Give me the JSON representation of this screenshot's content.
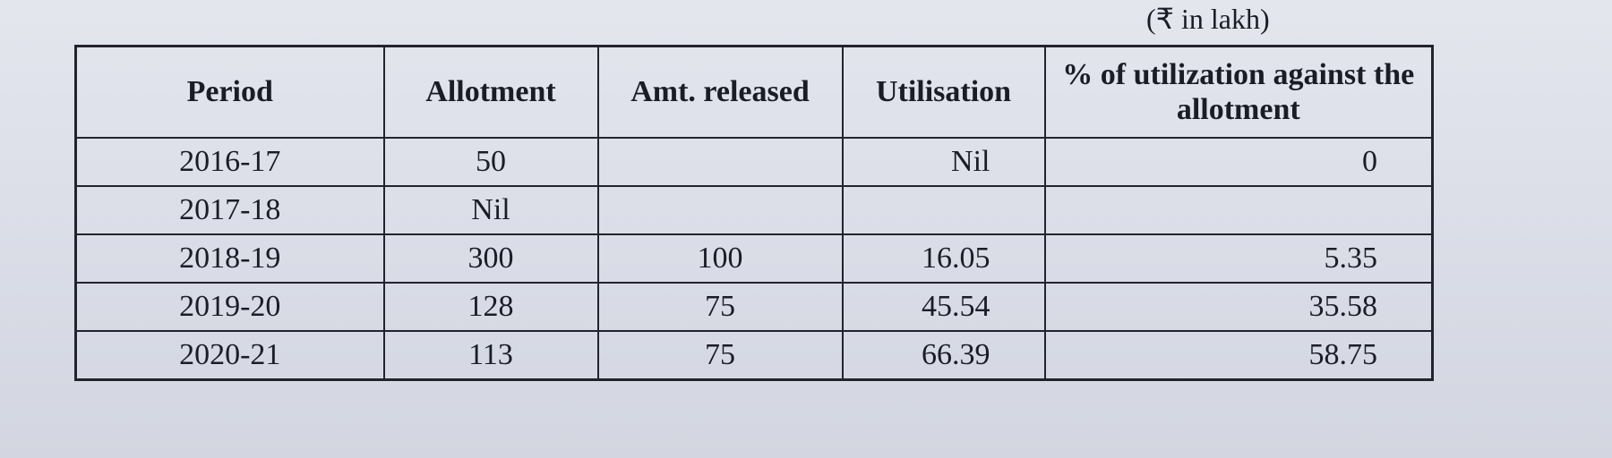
{
  "unit_note": "(₹ in lakh)",
  "table": {
    "header": [
      "Period",
      "Allotment",
      "Amt. released",
      "Utilisation",
      "% of utilization against the allotment"
    ],
    "rows": [
      [
        "2016-17",
        "50",
        null,
        "Nil",
        "0"
      ],
      [
        "2017-18",
        "Nil",
        null,
        null,
        null
      ],
      [
        "2018-19",
        "300",
        "100",
        "16.05",
        "5.35"
      ],
      [
        "2019-20",
        "128",
        "75",
        "45.54",
        "35.58"
      ],
      [
        "2020-21",
        "113",
        "75",
        "66.39",
        "58.75"
      ]
    ]
  }
}
